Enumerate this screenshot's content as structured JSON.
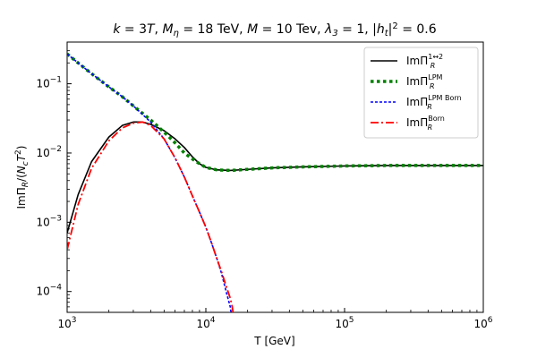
{
  "chart_data": {
    "type": "line",
    "title": "k = 3T, Mη = 18 TeV, M = 10 Tev, λ3 = 1, |ht|² = 0.6",
    "xlabel": "T [GeV]",
    "ylabel": "ImΠR/(NcT²)",
    "xscale": "log",
    "yscale": "log",
    "xlim": [
      1000,
      1000000
    ],
    "ylim": [
      5e-05,
      0.4
    ],
    "x_ticks": [
      {
        "value": 1000,
        "base": "10",
        "exp": "3"
      },
      {
        "value": 10000,
        "base": "10",
        "exp": "4"
      },
      {
        "value": 100000,
        "base": "10",
        "exp": "5"
      },
      {
        "value": 1000000,
        "base": "10",
        "exp": "6"
      }
    ],
    "y_ticks": [
      {
        "value": 0.0001,
        "base": "10",
        "exp": "−4"
      },
      {
        "value": 0.001,
        "base": "10",
        "exp": "−3"
      },
      {
        "value": 0.01,
        "base": "10",
        "exp": "−2"
      },
      {
        "value": 0.1,
        "base": "10",
        "exp": "−1"
      }
    ],
    "legend_position": "top-right",
    "series": [
      {
        "label_base": "ImΠ",
        "label_sub": "R",
        "label_sup": "1↔2",
        "color": "#000000",
        "style": "solid",
        "x": [
          1000,
          1200,
          1500,
          2000,
          2500,
          3000,
          3500,
          4000,
          5000,
          6000,
          7000,
          8000,
          9000,
          10000,
          12000,
          15000,
          20000,
          30000,
          50000,
          100000,
          200000,
          500000,
          1000000
        ],
        "y": [
          0.0007,
          0.0025,
          0.0075,
          0.017,
          0.025,
          0.028,
          0.028,
          0.026,
          0.021,
          0.016,
          0.012,
          0.0088,
          0.007,
          0.0062,
          0.0057,
          0.0056,
          0.0058,
          0.0061,
          0.0063,
          0.0065,
          0.0066,
          0.0066,
          0.0066
        ]
      },
      {
        "label_base": "ImΠ",
        "label_sub": "R",
        "label_sup": "LPM",
        "color": "#008000",
        "style": "dotted",
        "x": [
          1000,
          1200,
          1500,
          2000,
          2500,
          3000,
          4000,
          5000,
          6000,
          7000,
          8000,
          9000,
          10000,
          12000,
          15000,
          20000,
          30000,
          50000,
          100000,
          200000,
          500000,
          1000000
        ],
        "y": [
          0.27,
          0.2,
          0.14,
          0.09,
          0.065,
          0.048,
          0.03,
          0.02,
          0.014,
          0.01,
          0.0082,
          0.007,
          0.0062,
          0.0057,
          0.0056,
          0.0058,
          0.0061,
          0.0063,
          0.0065,
          0.0066,
          0.0066,
          0.0066
        ]
      },
      {
        "label_base": "ImΠ",
        "label_sub": "R",
        "label_sup": "LPM Born",
        "color": "#0000ff",
        "style": "dashed",
        "x": [
          1000,
          1200,
          1500,
          2000,
          2500,
          3000,
          4000,
          5000,
          6000,
          7000,
          8000,
          9000,
          10000,
          11000,
          12000,
          13000,
          14000,
          15000,
          15200
        ],
        "y": [
          0.27,
          0.2,
          0.14,
          0.09,
          0.065,
          0.048,
          0.028,
          0.016,
          0.0085,
          0.0045,
          0.0024,
          0.0014,
          0.00085,
          0.0005,
          0.0003,
          0.00018,
          0.0001,
          6e-05,
          5e-05
        ]
      },
      {
        "label_base": "ImΠ",
        "label_sub": "R",
        "label_sup": "Born",
        "color": "#ff0000",
        "style": "dashdot",
        "x": [
          1000,
          1200,
          1500,
          2000,
          2500,
          3000,
          3500,
          4000,
          5000,
          6000,
          7000,
          8000,
          9000,
          10000,
          11000,
          12000,
          13000,
          14000,
          15000,
          15500,
          15700
        ],
        "y": [
          0.0004,
          0.0018,
          0.006,
          0.015,
          0.023,
          0.027,
          0.028,
          0.025,
          0.016,
          0.0085,
          0.0045,
          0.0024,
          0.0014,
          0.00085,
          0.0005,
          0.0003,
          0.00019,
          0.00012,
          8e-05,
          6e-05,
          5e-05
        ]
      }
    ]
  }
}
